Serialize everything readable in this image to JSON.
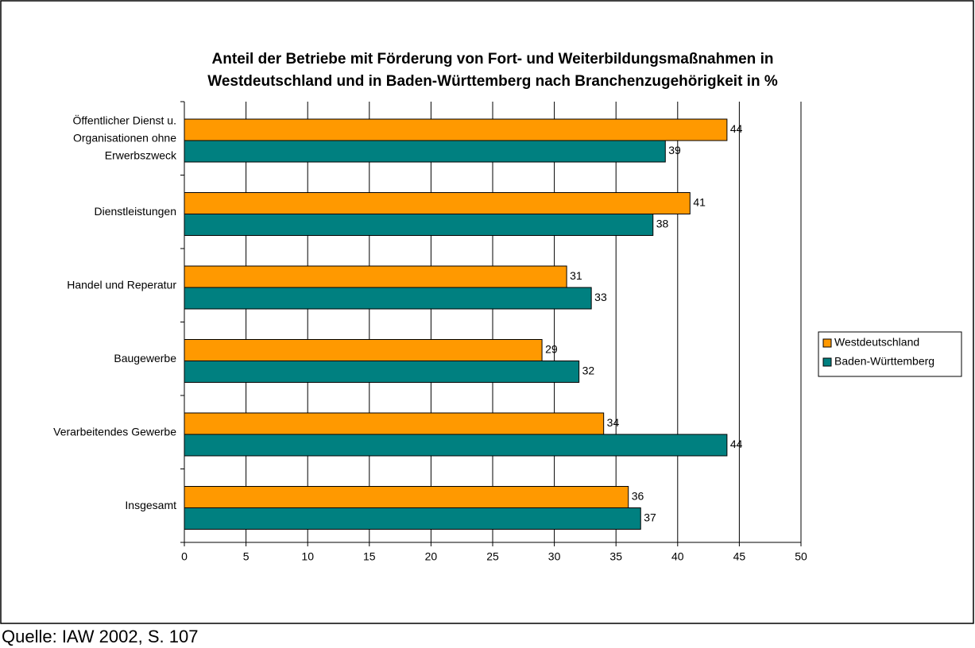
{
  "chart_data": {
    "type": "bar",
    "orientation": "horizontal",
    "title": "Anteil der Betriebe mit Förderung von Fort- und Weiterbildungsmaßnahmen in\nWestdeutschland und in Baden-Württemberg nach Branchenzugehörigkeit in %",
    "categories": [
      "Öffentlicher Dienst u.\nOrganisationen ohne\nErwerbszweck",
      "Dienstleistungen",
      "Handel und Reperatur",
      "Baugewerbe",
      "Verarbeitendes Gewerbe",
      "Insgesamt"
    ],
    "series": [
      {
        "name": "Westdeutschland",
        "color": "#ff9900",
        "values": [
          44,
          41,
          31,
          29,
          34,
          36
        ]
      },
      {
        "name": "Baden-Württemberg",
        "color": "#008080",
        "values": [
          39,
          38,
          33,
          32,
          44,
          37
        ]
      }
    ],
    "xlim": [
      0,
      50
    ],
    "xticks": [
      0,
      5,
      10,
      15,
      20,
      25,
      30,
      35,
      40,
      45,
      50
    ],
    "grid": true,
    "legend": "right",
    "source": "Quelle: IAW 2002, S. 107"
  }
}
